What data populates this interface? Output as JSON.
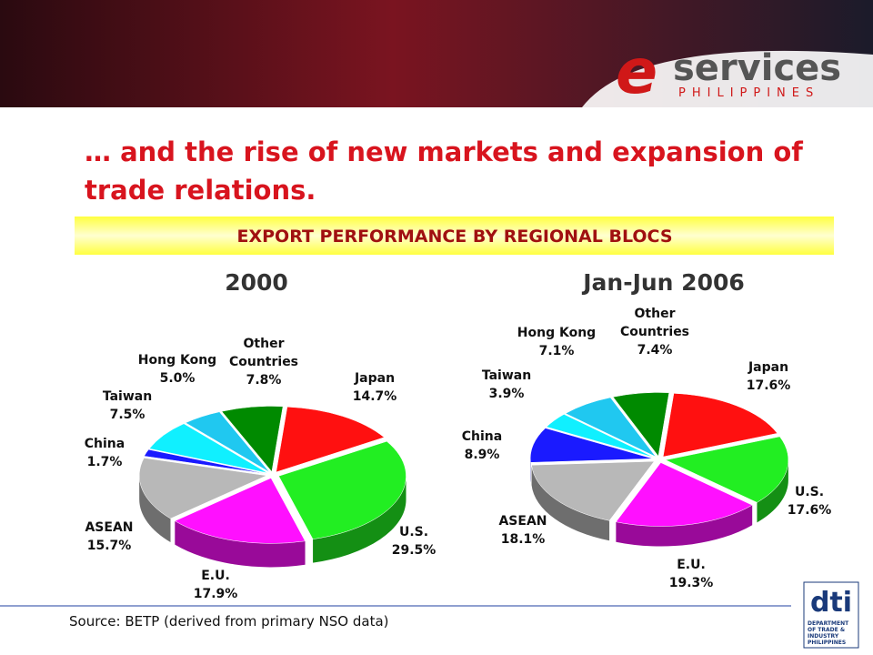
{
  "header": {
    "logo_e": "e",
    "logo": "services",
    "logo_sub": "PHILIPPINES",
    "title": "… and the rise of new markets and expansion of trade relations.",
    "banner": "EXPORT PERFORMANCE BY REGIONAL BLOCS"
  },
  "chart_data": [
    {
      "type": "pie",
      "title": "2000",
      "categories": [
        "Japan",
        "U.S.",
        "E.U.",
        "ASEAN",
        "China",
        "Taiwan",
        "Hong Kong",
        "Other Countries"
      ],
      "values": [
        14.7,
        29.5,
        17.9,
        15.7,
        1.7,
        7.5,
        5.0,
        7.8
      ],
      "value_labels": [
        "14.7%",
        "29.5%",
        "17.9%",
        "15.7%",
        "1.7%",
        "7.5%",
        "5.0%",
        "7.8%"
      ],
      "colors": [
        "#ff1010",
        "#22ee22",
        "#ff10ff",
        "#b8b8b8",
        "#1a1aff",
        "#10f0ff",
        "#20c8f0",
        "#008a00"
      ]
    },
    {
      "type": "pie",
      "title": "Jan-Jun 2006",
      "categories": [
        "Japan",
        "U.S.",
        "E.U.",
        "ASEAN",
        "China",
        "Taiwan",
        "Hong Kong",
        "Other Countries"
      ],
      "values": [
        17.6,
        17.6,
        19.3,
        18.1,
        8.9,
        3.9,
        7.1,
        7.4
      ],
      "value_labels": [
        "17.6%",
        "17.6%",
        "19.3%",
        "18.1%",
        "8.9%",
        "3.9%",
        "7.1%",
        "7.4%"
      ],
      "colors": [
        "#ff1010",
        "#22ee22",
        "#ff10ff",
        "#b8b8b8",
        "#1a1aff",
        "#10f0ff",
        "#20c8f0",
        "#008a00"
      ]
    }
  ],
  "footer": {
    "source": "Source: BETP (derived from primary NSO data)",
    "dti": "dti",
    "dti_sub": "DEPARTMENT OF TRADE & INDUSTRY PHILIPPINES"
  }
}
